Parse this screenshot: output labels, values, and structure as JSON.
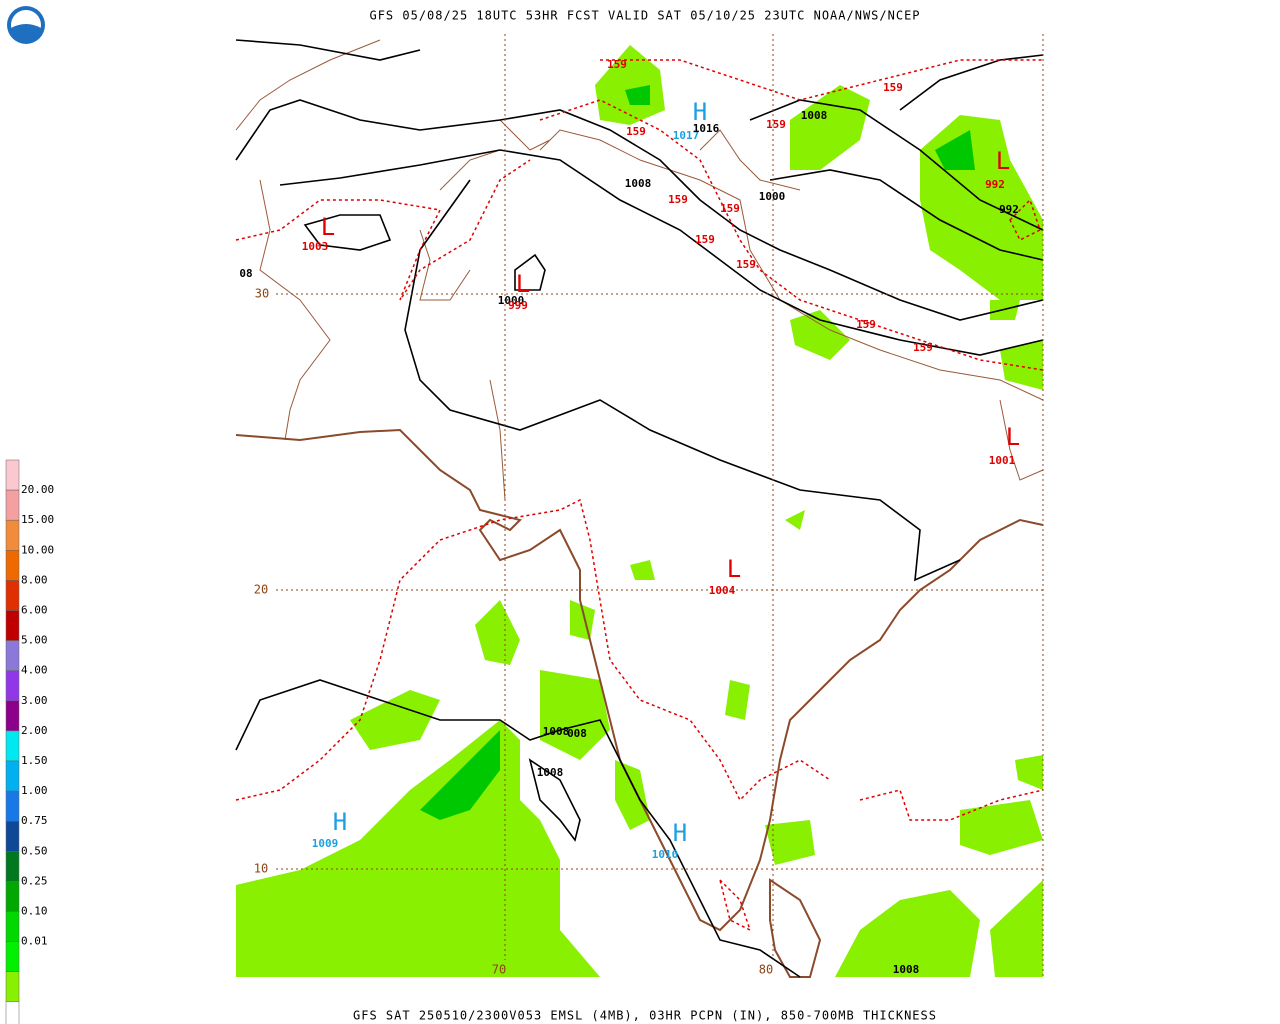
{
  "header": {
    "title": "GFS 05/08/25 18UTC 53HR FCST VALID SAT 05/10/25 23UTC NOAA/NWS/NCEP"
  },
  "footer": {
    "caption": "GFS SAT 250510/2300V053 EMSL (4MB), 03HR PCPN (IN), 850-700MB THICKNESS"
  },
  "legend": {
    "labels": [
      "20.00",
      "15.00",
      "10.00",
      "8.00",
      "6.00",
      "5.00",
      "4.00",
      "3.00",
      "2.00",
      "1.50",
      "1.00",
      "0.75",
      "0.50",
      "0.25",
      "0.10",
      "0.01"
    ],
    "colors": [
      "#fcc8d0",
      "#f4a0a0",
      "#f08c3c",
      "#ee6a00",
      "#e03000",
      "#c00000",
      "#8c78d8",
      "#9038e8",
      "#8c008c",
      "#00e8f0",
      "#00b0f0",
      "#1878e8",
      "#104898",
      "#007820",
      "#00a800",
      "#00d800",
      "#00f000",
      "#88f000",
      "#ffffff"
    ]
  },
  "grid": {
    "labels": [
      "30",
      "20",
      "10",
      "70",
      "80"
    ]
  },
  "map_labels": [
    {
      "text": "159",
      "color": "#e00000"
    },
    {
      "text": "159",
      "color": "#e00000"
    },
    {
      "text": "159",
      "color": "#e00000"
    },
    {
      "text": "159",
      "color": "#e00000"
    },
    {
      "text": "159",
      "color": "#e00000"
    },
    {
      "text": "159",
      "color": "#e00000"
    },
    {
      "text": "159",
      "color": "#e00000"
    },
    {
      "text": "159",
      "color": "#e00000"
    },
    {
      "text": "159",
      "color": "#e00000"
    },
    {
      "text": "159",
      "color": "#e00000"
    },
    {
      "text": "H",
      "color": "#1ca0e0"
    },
    {
      "text": "1017",
      "color": "#1ca0e0"
    },
    {
      "text": "1016",
      "color": "#000000"
    },
    {
      "text": "1008",
      "color": "#000000"
    },
    {
      "text": "1008",
      "color": "#000000"
    },
    {
      "text": "1000",
      "color": "#000000"
    },
    {
      "text": "L",
      "color": "#e00000"
    },
    {
      "text": "992",
      "color": "#e00000"
    },
    {
      "text": "992",
      "color": "#000000"
    },
    {
      "text": "L",
      "color": "#e00000"
    },
    {
      "text": "1003",
      "color": "#e00000"
    },
    {
      "text": "08",
      "color": "#000000"
    },
    {
      "text": "L",
      "color": "#e00000"
    },
    {
      "text": "1000",
      "color": "#000000"
    },
    {
      "text": "999",
      "color": "#e00000"
    },
    {
      "text": "L",
      "color": "#e00000"
    },
    {
      "text": "1001",
      "color": "#e00000"
    },
    {
      "text": "L",
      "color": "#e00000"
    },
    {
      "text": "1004",
      "color": "#e00000"
    },
    {
      "text": "1008",
      "color": "#000000"
    },
    {
      "text": "008",
      "color": "#000000"
    },
    {
      "text": "1008",
      "color": "#000000"
    },
    {
      "text": "H",
      "color": "#1ca0e0"
    },
    {
      "text": "1009",
      "color": "#1ca0e0"
    },
    {
      "text": "H",
      "color": "#1ca0e0"
    },
    {
      "text": "1010",
      "color": "#1ca0e0"
    },
    {
      "text": "1008",
      "color": "#000000"
    }
  ]
}
